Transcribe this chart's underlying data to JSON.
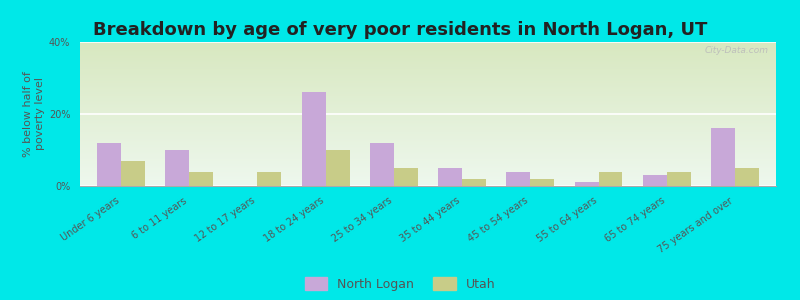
{
  "title": "Breakdown by age of very poor residents in North Logan, UT",
  "ylabel": "% below half of\npoverty level",
  "categories": [
    "Under 6 years",
    "6 to 11 years",
    "12 to 17 years",
    "18 to 24 years",
    "25 to 34 years",
    "35 to 44 years",
    "45 to 54 years",
    "55 to 64 years",
    "65 to 74 years",
    "75 years and over"
  ],
  "north_logan": [
    12.0,
    10.0,
    0.0,
    26.0,
    12.0,
    5.0,
    4.0,
    1.0,
    3.0,
    16.0
  ],
  "utah": [
    7.0,
    4.0,
    4.0,
    10.0,
    5.0,
    2.0,
    2.0,
    4.0,
    4.0,
    5.0
  ],
  "north_logan_color": "#c8a8d8",
  "utah_color": "#c8cc88",
  "plot_bg_top": "#d8e8c0",
  "plot_bg_bottom": "#eef8ee",
  "outer_bg_color": "#00e8e8",
  "grid_color": "#ffffff",
  "ylim": [
    0,
    40
  ],
  "yticks": [
    0,
    20,
    40
  ],
  "ytick_labels": [
    "0%",
    "20%",
    "40%"
  ],
  "bar_width": 0.35,
  "title_fontsize": 13,
  "axis_label_fontsize": 8,
  "tick_fontsize": 7,
  "legend_fontsize": 9
}
